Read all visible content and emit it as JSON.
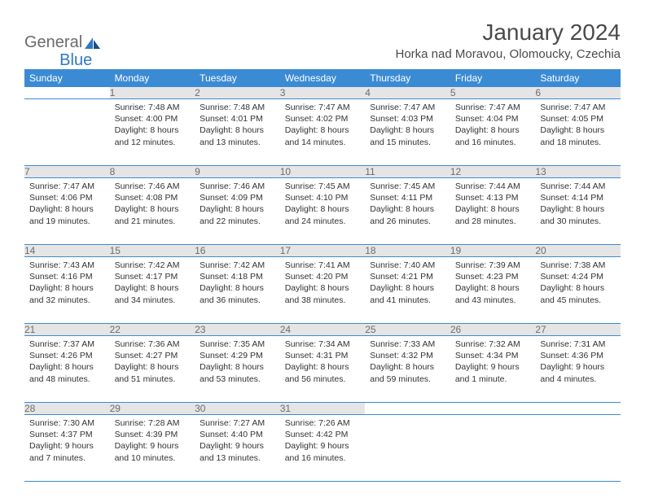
{
  "brand": {
    "part1": "General",
    "part2": "Blue"
  },
  "title": "January 2024",
  "location": "Horka nad Moravou, Olomoucky, Czechia",
  "colors": {
    "header_bg": "#3b8bd4",
    "header_text": "#ffffff",
    "daynum_bg": "#e5e5e5",
    "daynum_text": "#6d6d6d",
    "cell_border": "#3b8bd4",
    "body_text": "#333333",
    "logo_gray": "#6b6b6b",
    "logo_blue": "#2f78c2"
  },
  "weekdays": [
    "Sunday",
    "Monday",
    "Tuesday",
    "Wednesday",
    "Thursday",
    "Friday",
    "Saturday"
  ],
  "weeks": [
    [
      {
        "day": "",
        "sunrise": "",
        "sunset": "",
        "daylight": ""
      },
      {
        "day": "1",
        "sunrise": "Sunrise: 7:48 AM",
        "sunset": "Sunset: 4:00 PM",
        "daylight": "Daylight: 8 hours and 12 minutes."
      },
      {
        "day": "2",
        "sunrise": "Sunrise: 7:48 AM",
        "sunset": "Sunset: 4:01 PM",
        "daylight": "Daylight: 8 hours and 13 minutes."
      },
      {
        "day": "3",
        "sunrise": "Sunrise: 7:47 AM",
        "sunset": "Sunset: 4:02 PM",
        "daylight": "Daylight: 8 hours and 14 minutes."
      },
      {
        "day": "4",
        "sunrise": "Sunrise: 7:47 AM",
        "sunset": "Sunset: 4:03 PM",
        "daylight": "Daylight: 8 hours and 15 minutes."
      },
      {
        "day": "5",
        "sunrise": "Sunrise: 7:47 AM",
        "sunset": "Sunset: 4:04 PM",
        "daylight": "Daylight: 8 hours and 16 minutes."
      },
      {
        "day": "6",
        "sunrise": "Sunrise: 7:47 AM",
        "sunset": "Sunset: 4:05 PM",
        "daylight": "Daylight: 8 hours and 18 minutes."
      }
    ],
    [
      {
        "day": "7",
        "sunrise": "Sunrise: 7:47 AM",
        "sunset": "Sunset: 4:06 PM",
        "daylight": "Daylight: 8 hours and 19 minutes."
      },
      {
        "day": "8",
        "sunrise": "Sunrise: 7:46 AM",
        "sunset": "Sunset: 4:08 PM",
        "daylight": "Daylight: 8 hours and 21 minutes."
      },
      {
        "day": "9",
        "sunrise": "Sunrise: 7:46 AM",
        "sunset": "Sunset: 4:09 PM",
        "daylight": "Daylight: 8 hours and 22 minutes."
      },
      {
        "day": "10",
        "sunrise": "Sunrise: 7:45 AM",
        "sunset": "Sunset: 4:10 PM",
        "daylight": "Daylight: 8 hours and 24 minutes."
      },
      {
        "day": "11",
        "sunrise": "Sunrise: 7:45 AM",
        "sunset": "Sunset: 4:11 PM",
        "daylight": "Daylight: 8 hours and 26 minutes."
      },
      {
        "day": "12",
        "sunrise": "Sunrise: 7:44 AM",
        "sunset": "Sunset: 4:13 PM",
        "daylight": "Daylight: 8 hours and 28 minutes."
      },
      {
        "day": "13",
        "sunrise": "Sunrise: 7:44 AM",
        "sunset": "Sunset: 4:14 PM",
        "daylight": "Daylight: 8 hours and 30 minutes."
      }
    ],
    [
      {
        "day": "14",
        "sunrise": "Sunrise: 7:43 AM",
        "sunset": "Sunset: 4:16 PM",
        "daylight": "Daylight: 8 hours and 32 minutes."
      },
      {
        "day": "15",
        "sunrise": "Sunrise: 7:42 AM",
        "sunset": "Sunset: 4:17 PM",
        "daylight": "Daylight: 8 hours and 34 minutes."
      },
      {
        "day": "16",
        "sunrise": "Sunrise: 7:42 AM",
        "sunset": "Sunset: 4:18 PM",
        "daylight": "Daylight: 8 hours and 36 minutes."
      },
      {
        "day": "17",
        "sunrise": "Sunrise: 7:41 AM",
        "sunset": "Sunset: 4:20 PM",
        "daylight": "Daylight: 8 hours and 38 minutes."
      },
      {
        "day": "18",
        "sunrise": "Sunrise: 7:40 AM",
        "sunset": "Sunset: 4:21 PM",
        "daylight": "Daylight: 8 hours and 41 minutes."
      },
      {
        "day": "19",
        "sunrise": "Sunrise: 7:39 AM",
        "sunset": "Sunset: 4:23 PM",
        "daylight": "Daylight: 8 hours and 43 minutes."
      },
      {
        "day": "20",
        "sunrise": "Sunrise: 7:38 AM",
        "sunset": "Sunset: 4:24 PM",
        "daylight": "Daylight: 8 hours and 45 minutes."
      }
    ],
    [
      {
        "day": "21",
        "sunrise": "Sunrise: 7:37 AM",
        "sunset": "Sunset: 4:26 PM",
        "daylight": "Daylight: 8 hours and 48 minutes."
      },
      {
        "day": "22",
        "sunrise": "Sunrise: 7:36 AM",
        "sunset": "Sunset: 4:27 PM",
        "daylight": "Daylight: 8 hours and 51 minutes."
      },
      {
        "day": "23",
        "sunrise": "Sunrise: 7:35 AM",
        "sunset": "Sunset: 4:29 PM",
        "daylight": "Daylight: 8 hours and 53 minutes."
      },
      {
        "day": "24",
        "sunrise": "Sunrise: 7:34 AM",
        "sunset": "Sunset: 4:31 PM",
        "daylight": "Daylight: 8 hours and 56 minutes."
      },
      {
        "day": "25",
        "sunrise": "Sunrise: 7:33 AM",
        "sunset": "Sunset: 4:32 PM",
        "daylight": "Daylight: 8 hours and 59 minutes."
      },
      {
        "day": "26",
        "sunrise": "Sunrise: 7:32 AM",
        "sunset": "Sunset: 4:34 PM",
        "daylight": "Daylight: 9 hours and 1 minute."
      },
      {
        "day": "27",
        "sunrise": "Sunrise: 7:31 AM",
        "sunset": "Sunset: 4:36 PM",
        "daylight": "Daylight: 9 hours and 4 minutes."
      }
    ],
    [
      {
        "day": "28",
        "sunrise": "Sunrise: 7:30 AM",
        "sunset": "Sunset: 4:37 PM",
        "daylight": "Daylight: 9 hours and 7 minutes."
      },
      {
        "day": "29",
        "sunrise": "Sunrise: 7:28 AM",
        "sunset": "Sunset: 4:39 PM",
        "daylight": "Daylight: 9 hours and 10 minutes."
      },
      {
        "day": "30",
        "sunrise": "Sunrise: 7:27 AM",
        "sunset": "Sunset: 4:40 PM",
        "daylight": "Daylight: 9 hours and 13 minutes."
      },
      {
        "day": "31",
        "sunrise": "Sunrise: 7:26 AM",
        "sunset": "Sunset: 4:42 PM",
        "daylight": "Daylight: 9 hours and 16 minutes."
      },
      {
        "day": "",
        "sunrise": "",
        "sunset": "",
        "daylight": ""
      },
      {
        "day": "",
        "sunrise": "",
        "sunset": "",
        "daylight": ""
      },
      {
        "day": "",
        "sunrise": "",
        "sunset": "",
        "daylight": ""
      }
    ]
  ]
}
